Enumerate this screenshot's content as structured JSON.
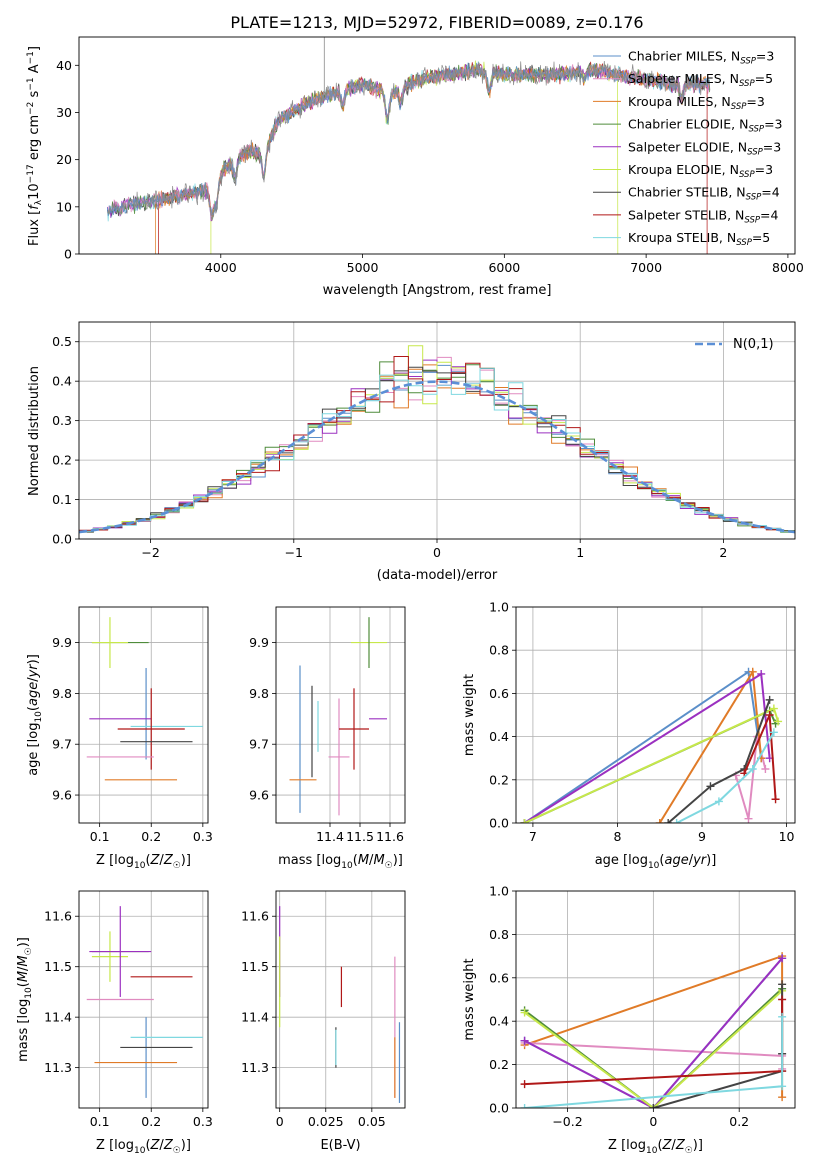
{
  "figure_title": "PLATE=1213, MJD=52972, FIBERID=0089, z=0.176",
  "palette": {
    "Chabrier MILES": "#5b8fc9",
    "Salpeter MILES": "#e08bc0",
    "Kroupa MILES": "#e07b28",
    "Chabrier ELODIE": "#4f8c3b",
    "Salpeter ELODIE": "#9b30c0",
    "Kroupa ELODIE": "#c7e84b",
    "Chabrier STELIB": "#444444",
    "Salpeter STELIB": "#b01818",
    "Kroupa STELIB": "#7fd8e0"
  },
  "chart_data": [
    {
      "id": "spectrum",
      "type": "line",
      "xlabel": "wavelength [Angstrom, rest frame]",
      "ylabel": "Flux [f_λ 10^-17 erg cm^-2 s^-1 A^-1]",
      "xlim": [
        3000,
        8050
      ],
      "ylim": [
        0,
        46
      ],
      "xticks": [
        4000,
        5000,
        6000,
        7000,
        8000
      ],
      "yticks": [
        0,
        10,
        20,
        30,
        40
      ],
      "grid": false,
      "legend_position": "top-right",
      "legend": [
        "Chabrier MILES, N_SSP=3",
        "Salpeter MILES, N_SSP=5",
        "Kroupa MILES, N_SSP=3",
        "Chabrier ELODIE, N_SSP=3",
        "Salpeter ELODIE, N_SSP=3",
        "Kroupa ELODIE, N_SSP=3",
        "Chabrier STELIB, N_SSP=4",
        "Salpeter STELIB, N_SSP=4",
        "Kroupa STELIB, N_SSP=5"
      ],
      "legend_keys": [
        "Chabrier MILES",
        "Salpeter MILES",
        "Kroupa MILES",
        "Chabrier ELODIE",
        "Salpeter ELODIE",
        "Kroupa ELODIE",
        "Chabrier STELIB",
        "Salpeter STELIB",
        "Kroupa STELIB"
      ],
      "continuum": {
        "x": [
          3200,
          3350,
          3500,
          3650,
          3800,
          3950,
          4000,
          4100,
          4200,
          4300,
          4400,
          4600,
          4800,
          5000,
          5200,
          5400,
          5600,
          5800,
          6000,
          6200,
          6400,
          6600,
          6800,
          7000,
          7200,
          7400
        ],
        "y": [
          9,
          10.5,
          11,
          12,
          13,
          14,
          17,
          20,
          22,
          21,
          28,
          32,
          34,
          36,
          34,
          37,
          38,
          39,
          38,
          38,
          38,
          39,
          38,
          37,
          36,
          36
        ]
      },
      "absorption_lines": [
        [
          3934,
          6
        ],
        [
          3969,
          5
        ],
        [
          4102,
          4
        ],
        [
          4304,
          5
        ],
        [
          4861,
          3
        ],
        [
          5175,
          6
        ],
        [
          5270,
          3
        ],
        [
          5892,
          4
        ],
        [
          6563,
          2
        ],
        [
          7250,
          3
        ]
      ],
      "edges": [
        {
          "series": "Kroupa MILES",
          "x": 3540,
          "side": "start"
        },
        {
          "series": "Salpeter STELIB",
          "x": 3560,
          "side": "start"
        },
        {
          "series": "Kroupa ELODIE",
          "x": 3930,
          "side": "start"
        },
        {
          "series": "Kroupa ELODIE",
          "x": 6800,
          "side": "end"
        },
        {
          "series": "Salpeter STELIB",
          "x": 7430,
          "side": "end"
        }
      ]
    },
    {
      "id": "residuals",
      "type": "histogram",
      "xlabel": "(data-model)/error",
      "ylabel": "Normed distribution",
      "xlim": [
        -2.5,
        2.5
      ],
      "ylim": [
        0,
        0.55
      ],
      "xticks": [
        -2,
        -1,
        0,
        1,
        2
      ],
      "yticks": [
        0.0,
        0.1,
        0.2,
        0.3,
        0.4,
        0.5
      ],
      "grid": true,
      "legend": [
        "N(0,1)"
      ],
      "legend_position": "top-right",
      "bin_width": 0.1,
      "reference": {
        "name": "N(0,1)",
        "mu": 0,
        "sigma": 1,
        "style": "dashed",
        "color": "#5b8fd6"
      }
    },
    {
      "id": "age-vs-Z",
      "type": "errorbar",
      "xlabel": "Z [log10(Z/Z☉)]",
      "ylabel": "age [log10(age/yr)]",
      "xlim": [
        0.06,
        0.31
      ],
      "ylim": [
        9.545,
        9.97
      ],
      "xticks": [
        0.1,
        0.2,
        0.3
      ],
      "yticks": [
        9.6,
        9.7,
        9.8,
        9.9
      ],
      "grid": true,
      "points": [
        {
          "series": "Chabrier ELODIE",
          "x": 0.14,
          "xerr": 0.055,
          "y": 9.9,
          "yerr": 0.0
        },
        {
          "series": "Kroupa ELODIE",
          "x": 0.12,
          "xerr": 0.035,
          "y": 9.9,
          "yerr": 0.05
        },
        {
          "series": "Chabrier MILES",
          "x": 0.19,
          "xerr": 0.0,
          "y": 9.76,
          "yerr": 0.09
        },
        {
          "series": "Salpeter ELODIE",
          "x": 0.14,
          "xerr": 0.06,
          "y": 9.75,
          "yerr": 0.0
        },
        {
          "series": "Kroupa STELIB",
          "x": 0.23,
          "xerr": 0.07,
          "y": 9.735,
          "yerr": 0.0
        },
        {
          "series": "Salpeter STELIB",
          "x": 0.2,
          "xerr": 0.065,
          "y": 9.73,
          "yerr": 0.08
        },
        {
          "series": "Chabrier STELIB",
          "x": 0.21,
          "xerr": 0.07,
          "y": 9.705,
          "yerr": 0.0
        },
        {
          "series": "Salpeter MILES",
          "x": 0.14,
          "xerr": 0.065,
          "y": 9.675,
          "yerr": 0.0
        },
        {
          "series": "Kroupa MILES",
          "x": 0.18,
          "xerr": 0.07,
          "y": 9.63,
          "yerr": 0.0
        }
      ]
    },
    {
      "id": "age-vs-mass",
      "type": "errorbar",
      "xlabel": "mass [log10(M/M☉)]",
      "ylabel": "",
      "xlim": [
        11.22,
        11.65
      ],
      "ylim": [
        9.545,
        9.97
      ],
      "xticks": [
        11.4,
        11.5,
        11.6
      ],
      "yticks": [
        9.6,
        9.7,
        9.8,
        9.9
      ],
      "grid": true,
      "points": [
        {
          "series": "Kroupa ELODIE",
          "x": 11.53,
          "xerr": 0.06,
          "y": 9.9,
          "yerr": 0.0
        },
        {
          "series": "Chabrier ELODIE",
          "x": 11.53,
          "xerr": 0.0,
          "y": 9.9,
          "yerr": 0.05
        },
        {
          "series": "Chabrier MILES",
          "x": 11.3,
          "xerr": 0.0,
          "y": 9.71,
          "yerr": 0.145
        },
        {
          "series": "Chabrier STELIB",
          "x": 11.34,
          "xerr": 0.0,
          "y": 9.725,
          "yerr": 0.09
        },
        {
          "series": "Salpeter MILES",
          "x": 11.43,
          "xerr": 0.035,
          "y": 9.675,
          "yerr": 0.115
        },
        {
          "series": "Salpeter ELODIE",
          "x": 11.56,
          "xerr": 0.03,
          "y": 9.75,
          "yerr": 0.0
        },
        {
          "series": "Salpeter STELIB",
          "x": 11.48,
          "xerr": 0.05,
          "y": 9.73,
          "yerr": 0.08
        },
        {
          "series": "Kroupa STELIB",
          "x": 11.36,
          "xerr": 0.0,
          "y": 9.735,
          "yerr": 0.05
        },
        {
          "series": "Kroupa MILES",
          "x": 11.31,
          "xerr": 0.045,
          "y": 9.63,
          "yerr": 0.0
        }
      ]
    },
    {
      "id": "weight-vs-age",
      "type": "line",
      "xlabel": "age [log10(age/yr)]",
      "ylabel": "mass weight",
      "xlim": [
        6.8,
        10.1
      ],
      "ylim": [
        0,
        1.0
      ],
      "xticks": [
        7,
        8,
        9,
        10
      ],
      "yticks": [
        0.0,
        0.2,
        0.4,
        0.6,
        0.8,
        1.0
      ],
      "grid": true,
      "series": [
        {
          "name": "Chabrier MILES",
          "x": [
            6.9,
            9.55,
            9.7
          ],
          "y": [
            0.0,
            0.7,
            0.3
          ]
        },
        {
          "name": "Salpeter MILES",
          "x": [
            9.4,
            9.55,
            9.65,
            9.75
          ],
          "y": [
            0.22,
            0.02,
            0.4,
            0.25
          ]
        },
        {
          "name": "Kroupa MILES",
          "x": [
            8.5,
            9.6,
            9.7
          ],
          "y": [
            0.0,
            0.7,
            0.3
          ]
        },
        {
          "name": "Chabrier ELODIE",
          "x": [
            6.9,
            9.8,
            9.87
          ],
          "y": [
            0.0,
            0.52,
            0.46
          ]
        },
        {
          "name": "Salpeter ELODIE",
          "x": [
            6.9,
            9.7,
            9.8
          ],
          "y": [
            0.0,
            0.69,
            0.3
          ]
        },
        {
          "name": "Kroupa ELODIE",
          "x": [
            6.9,
            9.85,
            9.9
          ],
          "y": [
            0.0,
            0.53,
            0.47
          ]
        },
        {
          "name": "Chabrier STELIB",
          "x": [
            8.6,
            9.1,
            9.5,
            9.8
          ],
          "y": [
            0.0,
            0.17,
            0.25,
            0.57
          ]
        },
        {
          "name": "Salpeter STELIB",
          "x": [
            9.5,
            9.8,
            9.87
          ],
          "y": [
            0.23,
            0.5,
            0.11
          ]
        },
        {
          "name": "Kroupa STELIB",
          "x": [
            8.7,
            9.2,
            9.6,
            9.85
          ],
          "y": [
            0.0,
            0.1,
            0.25,
            0.42
          ]
        }
      ]
    },
    {
      "id": "mass-vs-Z",
      "type": "errorbar",
      "xlabel": "Z [log10(Z/Z☉)]",
      "ylabel": "mass [log10(M/M☉)]",
      "xlim": [
        0.06,
        0.31
      ],
      "ylim": [
        11.22,
        11.65
      ],
      "xticks": [
        0.1,
        0.2,
        0.3
      ],
      "yticks": [
        11.3,
        11.4,
        11.5,
        11.6
      ],
      "grid": true,
      "points": [
        {
          "series": "Chabrier ELODIE",
          "x": 0.14,
          "xerr": 0.055,
          "y": 11.53,
          "yerr": 0.0
        },
        {
          "series": "Kroupa ELODIE",
          "x": 0.12,
          "xerr": 0.035,
          "y": 11.52,
          "yerr": 0.05
        },
        {
          "series": "Salpeter ELODIE",
          "x": 0.14,
          "xerr": 0.06,
          "y": 11.53,
          "yerr": 0.09
        },
        {
          "series": "Salpeter STELIB",
          "x": 0.22,
          "xerr": 0.06,
          "y": 11.48,
          "yerr": 0.0
        },
        {
          "series": "Chabrier MILES",
          "x": 0.19,
          "xerr": 0.0,
          "y": 11.32,
          "yerr": 0.08
        },
        {
          "series": "Salpeter MILES",
          "x": 0.14,
          "xerr": 0.065,
          "y": 11.435,
          "yerr": 0.0
        },
        {
          "series": "Kroupa STELIB",
          "x": 0.23,
          "xerr": 0.07,
          "y": 11.36,
          "yerr": 0.0
        },
        {
          "series": "Chabrier STELIB",
          "x": 0.21,
          "xerr": 0.07,
          "y": 11.34,
          "yerr": 0.0
        },
        {
          "series": "Kroupa MILES",
          "x": 0.17,
          "xerr": 0.08,
          "y": 11.31,
          "yerr": 0.0
        },
        {
          "series": "Salpeter STELIB",
          "x": 0.19,
          "xerr": 0.0,
          "y": 11.3,
          "yerr": 0.0
        }
      ]
    },
    {
      "id": "mass-vs-ebv",
      "type": "errorbar",
      "xlabel": "E(B-V)",
      "ylabel": "",
      "xlim": [
        -0.002,
        0.068
      ],
      "ylim": [
        11.22,
        11.65
      ],
      "xticks": [
        0.0,
        0.025,
        0.05
      ],
      "yticks": [
        11.3,
        11.4,
        11.5,
        11.6
      ],
      "grid": true,
      "points": [
        {
          "series": "Salpeter ELODIE",
          "x": 0.0,
          "xerr": 0.0,
          "y": 11.53,
          "yerr": 0.09
        },
        {
          "series": "Kroupa ELODIE",
          "x": 0.0,
          "xerr": 0.0,
          "y": 11.47,
          "yerr": 0.09
        },
        {
          "series": "Chabrier STELIB",
          "x": 0.0305,
          "xerr": 0.0,
          "y": 11.34,
          "yerr": 0.04
        },
        {
          "series": "Kroupa STELIB",
          "x": 0.0305,
          "xerr": 0.0,
          "y": 11.34,
          "yerr": 0.035
        },
        {
          "series": "Salpeter STELIB",
          "x": 0.0335,
          "xerr": 0.0,
          "y": 11.46,
          "yerr": 0.04
        },
        {
          "series": "Salpeter MILES",
          "x": 0.0625,
          "xerr": 0.0,
          "y": 11.38,
          "yerr": 0.14
        },
        {
          "series": "Kroupa MILES",
          "x": 0.0625,
          "xerr": 0.0,
          "y": 11.3,
          "yerr": 0.06
        },
        {
          "series": "Chabrier MILES",
          "x": 0.065,
          "xerr": 0.0,
          "y": 11.31,
          "yerr": 0.08
        }
      ]
    },
    {
      "id": "weight-vs-Z",
      "type": "line",
      "xlabel": "Z [log10(Z/Z☉)]",
      "ylabel": "mass weight",
      "xlim": [
        -0.32,
        0.33
      ],
      "ylim": [
        0,
        1.0
      ],
      "xticks": [
        -0.2,
        0.0,
        0.2
      ],
      "yticks": [
        0.0,
        0.2,
        0.4,
        0.6,
        0.8,
        1.0
      ],
      "grid": true,
      "series": [
        {
          "name": "Kroupa MILES",
          "x": [
            -0.3,
            0.3,
            0.3
          ],
          "y": [
            0.29,
            0.7,
            0.05
          ]
        },
        {
          "name": "Salpeter MILES",
          "x": [
            -0.3,
            0.3,
            0.3
          ],
          "y": [
            0.3,
            0.24,
            0.18
          ]
        },
        {
          "name": "Chabrier MILES",
          "x": [
            -0.3,
            0.0,
            0.3
          ],
          "y": [
            0.31,
            0.0,
            0.69
          ]
        },
        {
          "name": "Salpeter ELODIE",
          "x": [
            -0.3,
            0.0,
            0.3
          ],
          "y": [
            0.31,
            0.0,
            0.69
          ]
        },
        {
          "name": "Chabrier ELODIE",
          "x": [
            -0.3,
            0.0,
            0.3
          ],
          "y": [
            0.45,
            0.0,
            0.55
          ]
        },
        {
          "name": "Kroupa ELODIE",
          "x": [
            -0.3,
            0.0,
            0.3
          ],
          "y": [
            0.44,
            0.0,
            0.54
          ]
        },
        {
          "name": "Chabrier STELIB",
          "x": [
            0.0,
            0.3,
            0.3,
            0.3
          ],
          "y": [
            0.0,
            0.17,
            0.57,
            0.25
          ]
        },
        {
          "name": "Salpeter STELIB",
          "x": [
            -0.3,
            0.3,
            0.3
          ],
          "y": [
            0.11,
            0.17,
            0.5
          ]
        },
        {
          "name": "Kroupa STELIB",
          "x": [
            -0.3,
            0.3,
            0.3
          ],
          "y": [
            0.0,
            0.1,
            0.42
          ]
        }
      ]
    }
  ]
}
